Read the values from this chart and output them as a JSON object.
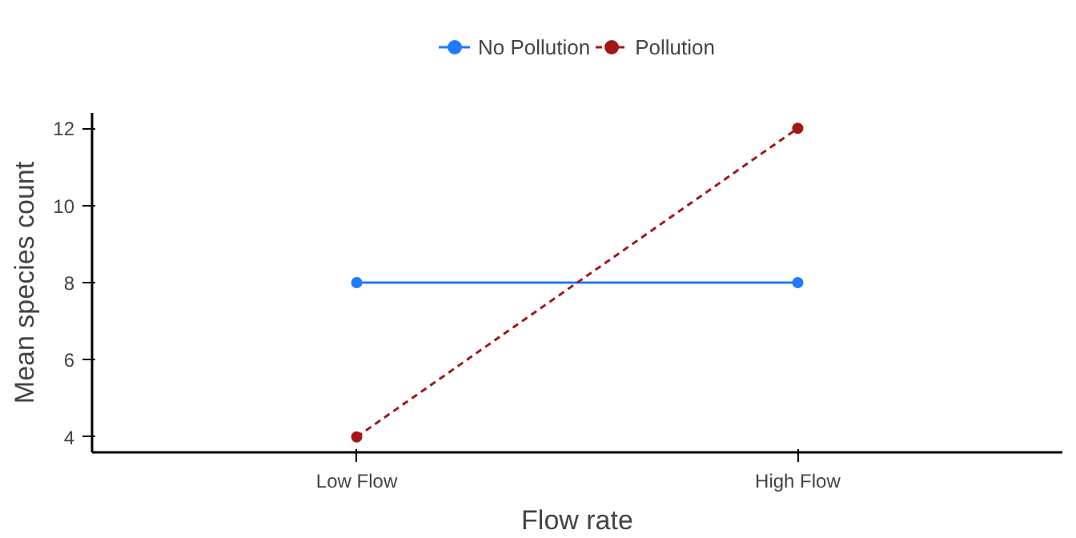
{
  "chart_data": {
    "type": "line",
    "xlabel": "Flow rate",
    "ylabel": "Mean species count",
    "categories": [
      "Low Flow",
      "High Flow"
    ],
    "series": [
      {
        "name": "No Pollution",
        "color": "#1f7bff",
        "values": [
          8,
          8
        ],
        "line_style": "solid"
      },
      {
        "name": "Pollution",
        "color": "#a4161a",
        "values": [
          4,
          12
        ],
        "line_style": "dashed"
      }
    ],
    "ylim": [
      3.6,
      12.4
    ],
    "yticks": [
      4,
      6,
      8,
      10,
      12
    ],
    "grid": false,
    "legend": "top",
    "marker": "circle"
  }
}
